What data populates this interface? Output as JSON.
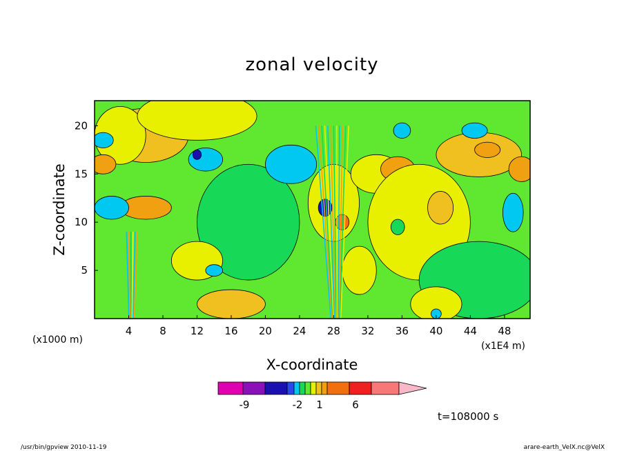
{
  "chart_data": {
    "type": "heatmap",
    "title": "zonal velocity",
    "xlabel": "X-coordinate",
    "ylabel": "Z-coordinate",
    "x_unit_left": "(x1000 m)",
    "x_unit_right": "(x1E4 m)",
    "xlim": [
      0,
      51
    ],
    "ylim": [
      0,
      22.6
    ],
    "x_ticks": [
      "4",
      "8",
      "12",
      "16",
      "20",
      "24",
      "28",
      "32",
      "36",
      "40",
      "44",
      "48"
    ],
    "x_tick_values": [
      4,
      8,
      12,
      16,
      20,
      24,
      28,
      32,
      36,
      40,
      44,
      48
    ],
    "y_ticks": [
      "5",
      "10",
      "15",
      "20"
    ],
    "y_tick_values": [
      5,
      10,
      15,
      20
    ],
    "colorbar": {
      "colors": [
        "#e000b0",
        "#8a10b8",
        "#1a10b0",
        "#2848e8",
        "#00c8f0",
        "#18d858",
        "#60e830",
        "#e8f000",
        "#f0c020",
        "#f0a010",
        "#f07010",
        "#f02020",
        "#f87878",
        "#f8b8c8"
      ],
      "labels": [
        "-9",
        "-2",
        "1",
        "6"
      ],
      "label_boundary_index": [
        2,
        4,
        7,
        10
      ]
    },
    "regions": [
      {
        "cx": 6,
        "cy": 19,
        "rx": 5,
        "ry": 2.8,
        "level": 8,
        "color": "#f0c020"
      },
      {
        "cx": 3,
        "cy": 19,
        "rx": 3,
        "ry": 3,
        "level": 7,
        "color": "#e8f000"
      },
      {
        "cx": 12,
        "cy": 21,
        "rx": 7,
        "ry": 2.5,
        "level": 7,
        "color": "#e8f000"
      },
      {
        "cx": 18,
        "cy": 10,
        "rx": 6,
        "ry": 6,
        "level": 5,
        "color": "#18d858"
      },
      {
        "cx": 23,
        "cy": 16,
        "rx": 3,
        "ry": 2,
        "level": 4,
        "color": "#00c8f0"
      },
      {
        "cx": 13,
        "cy": 16.5,
        "rx": 2,
        "ry": 1.2,
        "level": 4,
        "color": "#00c8f0"
      },
      {
        "cx": 12,
        "cy": 17,
        "rx": 0.5,
        "ry": 0.5,
        "level": 2,
        "color": "#1a10b0"
      },
      {
        "cx": 6,
        "cy": 11.5,
        "rx": 3,
        "ry": 1.2,
        "level": 9,
        "color": "#f0a010"
      },
      {
        "cx": 2,
        "cy": 11.5,
        "rx": 2,
        "ry": 1.2,
        "level": 4,
        "color": "#00c8f0"
      },
      {
        "cx": 1,
        "cy": 16,
        "rx": 1.5,
        "ry": 1,
        "level": 9,
        "color": "#f0a010"
      },
      {
        "cx": 12,
        "cy": 6,
        "rx": 3,
        "ry": 2,
        "level": 7,
        "color": "#e8f000"
      },
      {
        "cx": 14,
        "cy": 5,
        "rx": 1,
        "ry": 0.6,
        "level": 4,
        "color": "#00c8f0"
      },
      {
        "cx": 16,
        "cy": 1.5,
        "rx": 4,
        "ry": 1.5,
        "level": 8,
        "color": "#f0c020"
      },
      {
        "cx": 28,
        "cy": 12,
        "rx": 3,
        "ry": 4,
        "level": 7,
        "color": "#e8f000"
      },
      {
        "cx": 27,
        "cy": 11.5,
        "rx": 0.8,
        "ry": 0.9,
        "level": 2,
        "color": "#1a10b0"
      },
      {
        "cx": 29,
        "cy": 10,
        "rx": 0.8,
        "ry": 0.8,
        "level": 10,
        "color": "#f07010"
      },
      {
        "cx": 33,
        "cy": 15,
        "rx": 3,
        "ry": 2,
        "level": 7,
        "color": "#e8f000"
      },
      {
        "cx": 35.5,
        "cy": 15.5,
        "rx": 2,
        "ry": 1.3,
        "level": 9,
        "color": "#f0a010"
      },
      {
        "cx": 38,
        "cy": 10,
        "rx": 6,
        "ry": 6,
        "level": 7,
        "color": "#e8f000"
      },
      {
        "cx": 40.5,
        "cy": 11.5,
        "rx": 1.5,
        "ry": 1.7,
        "level": 8,
        "color": "#f0c020"
      },
      {
        "cx": 45,
        "cy": 17,
        "rx": 5,
        "ry": 2.3,
        "level": 8,
        "color": "#f0c020"
      },
      {
        "cx": 46,
        "cy": 17.5,
        "rx": 1.5,
        "ry": 0.8,
        "level": 9,
        "color": "#f0a010"
      },
      {
        "cx": 50,
        "cy": 15.5,
        "rx": 1.5,
        "ry": 1.3,
        "level": 9,
        "color": "#f0a010"
      },
      {
        "cx": 49,
        "cy": 11,
        "rx": 1.2,
        "ry": 2,
        "level": 4,
        "color": "#00c8f0"
      },
      {
        "cx": 45,
        "cy": 4,
        "rx": 7,
        "ry": 4,
        "level": 5,
        "color": "#18d858"
      },
      {
        "cx": 40,
        "cy": 1.5,
        "rx": 3,
        "ry": 1.8,
        "level": 7,
        "color": "#e8f000"
      },
      {
        "cx": 40,
        "cy": 0.5,
        "rx": 0.6,
        "ry": 0.5,
        "level": 4,
        "color": "#00c8f0"
      },
      {
        "cx": 36,
        "cy": 19.5,
        "rx": 1,
        "ry": 0.8,
        "level": 4,
        "color": "#00c8f0"
      },
      {
        "cx": 44.5,
        "cy": 19.5,
        "rx": 1.5,
        "ry": 0.8,
        "level": 4,
        "color": "#00c8f0"
      },
      {
        "cx": 1,
        "cy": 18.5,
        "rx": 1.2,
        "ry": 0.8,
        "level": 4,
        "color": "#00c8f0"
      },
      {
        "cx": 35.5,
        "cy": 9.5,
        "rx": 0.8,
        "ry": 0.8,
        "level": 5,
        "color": "#18d858"
      },
      {
        "cx": 31,
        "cy": 5,
        "rx": 2,
        "ry": 2.5,
        "level": 7,
        "color": "#e8f000"
      }
    ]
  },
  "time_label": "t=108000 s",
  "footer_left": "/usr/bin/gpview   2010-11-19",
  "footer_right": "arare-earth_VelX.nc@VelX"
}
